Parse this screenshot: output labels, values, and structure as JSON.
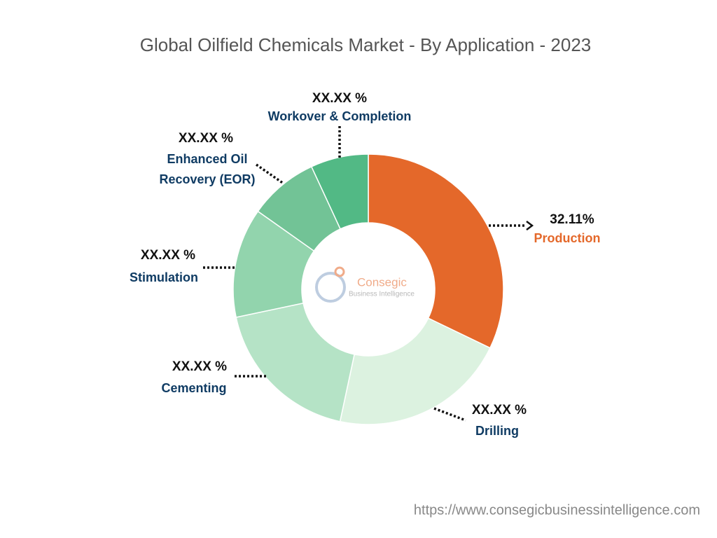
{
  "chart_data": {
    "type": "donut",
    "title": "Global Oilfield Chemicals Market - By Application - 2023",
    "categories": [
      "Production",
      "Drilling",
      "Cementing",
      "Stimulation",
      "Enhanced Oil Recovery (EOR)",
      "Workover & Completion"
    ],
    "values": [
      32.11,
      21.2,
      18.3,
      13.1,
      8.3,
      6.9
    ],
    "value_labels": [
      "32.11%",
      "XX.XX %",
      "XX.XX %",
      "XX.XX %",
      "XX.XX %",
      "XX.XX %"
    ],
    "colors": [
      "#e4682a",
      "#dcf2e0",
      "#b5e3c6",
      "#92d4ad",
      "#72c396",
      "#52b985"
    ],
    "watermark": {
      "name": "Consegic",
      "tagline": "Business Intelligence"
    },
    "source_url": "https://www.consegicbusinessintelligence.com"
  }
}
